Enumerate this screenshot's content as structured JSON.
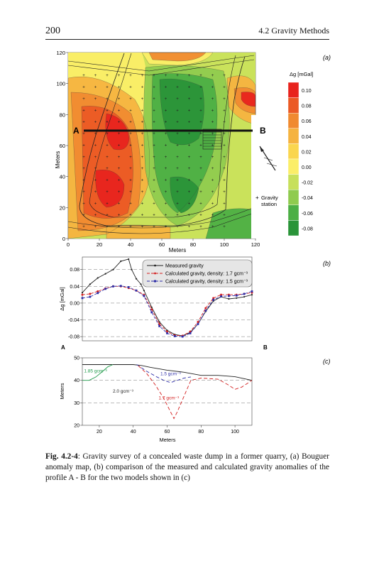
{
  "page": {
    "number": "200",
    "section": "4.2 Gravity Methods"
  },
  "panel_labels": {
    "a": "(a)",
    "b": "(b)",
    "c": "(c)"
  },
  "map": {
    "xlabel": "Meters",
    "ylabel": "Meters",
    "xticks": [
      "0",
      "20",
      "40",
      "60",
      "80",
      "100",
      "120"
    ],
    "yticks": [
      "0",
      "20",
      "40",
      "60",
      "80",
      "100",
      "120"
    ],
    "profile_start": "A",
    "profile_end": "B",
    "station_legend": "Gravity\nstation",
    "station_symbol": "+",
    "colorbar_title": "Δg [mGal]",
    "colorbar_values": [
      "0.10",
      "0.08",
      "0.06",
      "0.04",
      "0.02",
      "0.00",
      "-0.02",
      "-0.04",
      "-0.06",
      "-0.08"
    ],
    "colorbar_colors": [
      "#e8231d",
      "#eb5a25",
      "#f08a30",
      "#f5b340",
      "#fad64f",
      "#fbee68",
      "#c7e05b",
      "#8fcb4f",
      "#4caf45",
      "#2a9439"
    ]
  },
  "chart_data": [
    {
      "type": "line",
      "ylabel": "Δg [mGal]",
      "ylim": [
        -0.09,
        0.11
      ],
      "yticks": [
        "0.08",
        "0.04",
        "0.00",
        "-0.04",
        "-0.08"
      ],
      "xlim": [
        0,
        110
      ],
      "start_label": "A",
      "end_label": "B",
      "legend": "top-right",
      "series": [
        {
          "name": "Measured gravity",
          "color": "#222222",
          "dash": "solid",
          "x": [
            0,
            5,
            10,
            15,
            20,
            25,
            30,
            32,
            35,
            38,
            40,
            45,
            50,
            55,
            60,
            65,
            70,
            75,
            80,
            85,
            90,
            95,
            100,
            105,
            110
          ],
          "y": [
            0.025,
            0.045,
            0.06,
            0.07,
            0.08,
            0.1,
            0.105,
            0.08,
            0.058,
            0.045,
            0.03,
            -0.01,
            -0.045,
            -0.065,
            -0.075,
            -0.078,
            -0.07,
            -0.05,
            -0.02,
            0.005,
            0.015,
            0.01,
            0.012,
            0.015,
            0.02
          ]
        },
        {
          "name": "Calculated gravity, density: 1.7 gcm⁻³",
          "color": "#d42020",
          "dash": "dashed",
          "x": [
            0,
            5,
            10,
            15,
            20,
            25,
            30,
            35,
            40,
            45,
            50,
            55,
            60,
            65,
            70,
            75,
            80,
            85,
            90,
            95,
            100,
            105,
            110
          ],
          "y": [
            0.02,
            0.022,
            0.028,
            0.035,
            0.04,
            0.04,
            0.036,
            0.03,
            0.02,
            -0.015,
            -0.05,
            -0.068,
            -0.077,
            -0.078,
            -0.068,
            -0.045,
            -0.012,
            0.012,
            0.02,
            0.02,
            0.02,
            0.022,
            0.025
          ]
        },
        {
          "name": "Calculated gravity, density: 1.5 gcm⁻³",
          "color": "#2f2fa8",
          "dash": "dashed",
          "x": [
            0,
            5,
            10,
            15,
            20,
            25,
            30,
            35,
            40,
            45,
            50,
            55,
            60,
            65,
            70,
            75,
            80,
            85,
            90,
            95,
            100,
            105,
            110
          ],
          "y": [
            0.012,
            0.015,
            0.024,
            0.034,
            0.04,
            0.041,
            0.038,
            0.03,
            0.017,
            -0.022,
            -0.055,
            -0.072,
            -0.079,
            -0.08,
            -0.072,
            -0.05,
            -0.018,
            0.008,
            0.016,
            0.017,
            0.018,
            0.022,
            0.028
          ]
        }
      ]
    },
    {
      "type": "line",
      "xlabel": "Meters",
      "ylabel": "Meters",
      "xlim": [
        10,
        110
      ],
      "ylim": [
        20,
        50
      ],
      "xticks": [
        "20",
        "40",
        "60",
        "80",
        "100"
      ],
      "yticks": [
        "50",
        "40",
        "30",
        "20"
      ],
      "annotations": [
        "1.85 gcm⁻³",
        "2.0 gcm⁻³",
        "1.5 gcm⁻³",
        "1.7 gcm⁻³"
      ],
      "series": [
        {
          "color": "#222222",
          "dash": "solid",
          "x": [
            10,
            20,
            30,
            40,
            45,
            50,
            60,
            70,
            80,
            90,
            100,
            110
          ],
          "y": [
            47,
            47,
            47,
            47,
            46.6,
            45.8,
            44.5,
            43.6,
            42.2,
            42.2,
            41.6,
            40
          ]
        },
        {
          "color": "#1f9a4a",
          "dash": "solid",
          "x": [
            10,
            14,
            18,
            22,
            25,
            28
          ],
          "y": [
            40,
            40,
            41.5,
            44,
            46,
            47
          ]
        },
        {
          "color": "#2f2fa8",
          "dash": "dashed",
          "x": [
            42,
            48,
            54,
            58,
            62,
            66,
            70,
            74
          ],
          "y": [
            47,
            44,
            41.5,
            40,
            39,
            40,
            41,
            41.5
          ]
        },
        {
          "color": "#d42020",
          "dash": "dashed",
          "x": [
            43,
            48,
            53,
            58,
            62,
            64,
            66,
            70,
            74,
            80,
            90,
            96,
            100,
            104,
            108,
            110
          ],
          "y": [
            46.5,
            43,
            38,
            32,
            26,
            23,
            26,
            33,
            40,
            41,
            40.5,
            38,
            36,
            37,
            39,
            40
          ]
        }
      ]
    }
  ],
  "caption": {
    "label": "Fig. 4.2-4",
    "text": ": Gravity survey of a concealed waste dump in a former quarry, (a) Bouguer anomaly map, (b) comparison of the measured and calculated gravity anomalies of the profile A - B for the two models shown in (c)"
  }
}
